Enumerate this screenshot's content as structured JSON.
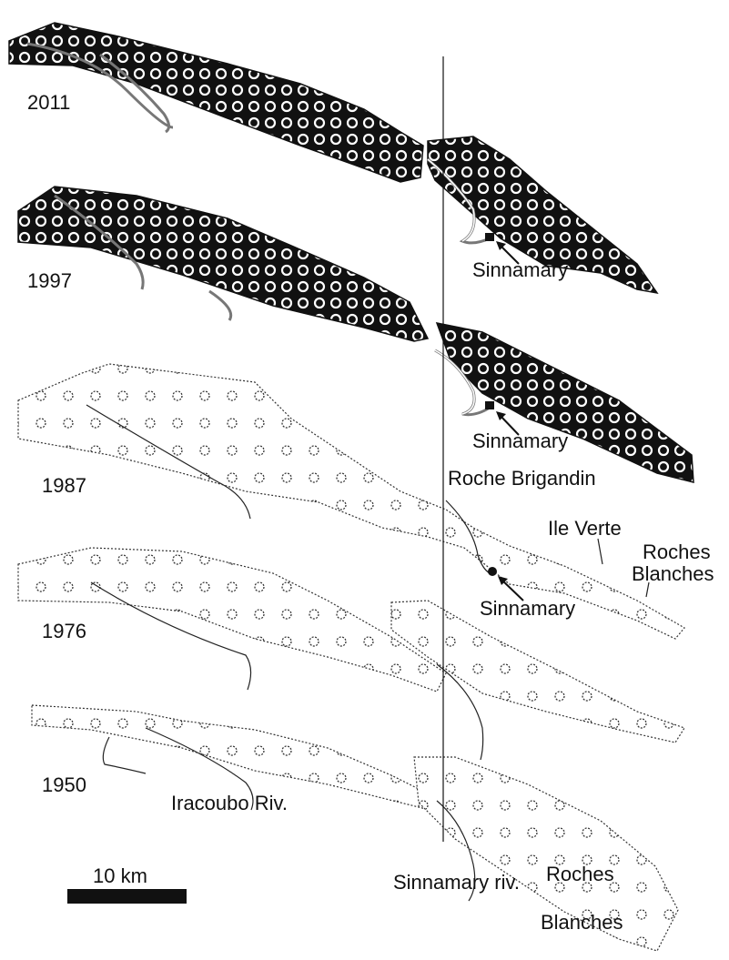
{
  "years": [
    "2011",
    "1997",
    "1987",
    "1976",
    "1950"
  ],
  "labels": {
    "sinnamary_2011": "Sinnamary",
    "sinnamary_1997": "Sinnamary",
    "sinnamary_1987": "Sinnamary",
    "roche_brigandin": "Roche Brigandin",
    "ile_verte": "Ile Verte",
    "roches_blanches_top": [
      "Roches",
      "Blanches"
    ],
    "iracoubo": "Iracoubo Riv.",
    "sinnamary_riv": "Sinnamary riv.",
    "roches_blanches_bottom": [
      "Roches",
      "Blanches"
    ]
  },
  "scale_bar": {
    "label": "10 km"
  }
}
